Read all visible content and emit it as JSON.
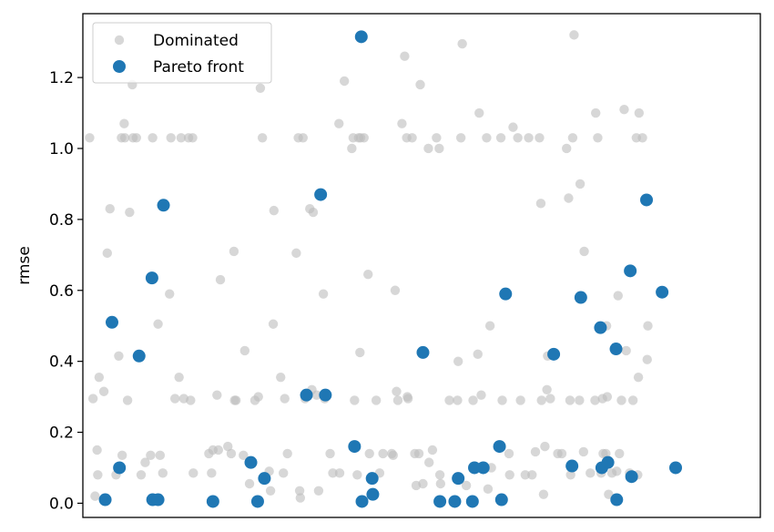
{
  "chart_data": {
    "type": "scatter",
    "title": "",
    "xlabel": "",
    "ylabel": "rmse",
    "x_ticks_visible": false,
    "xlim": [
      0,
      100
    ],
    "ylim": [
      -0.04,
      1.38
    ],
    "yticks": [
      0.0,
      0.2,
      0.4,
      0.6,
      0.8,
      1.0,
      1.2
    ],
    "ytick_labels": [
      "0.0",
      "0.2",
      "0.4",
      "0.6",
      "0.8",
      "1.0",
      "1.2"
    ],
    "grid": false,
    "legend": {
      "placement": "top-left",
      "entries": [
        "Dominated",
        "Pareto front"
      ]
    },
    "series": [
      {
        "name": "Dominated",
        "color": "#bdbdbd",
        "points": [
          [
            1.0,
            1.03
          ],
          [
            1.5,
            0.295
          ],
          [
            1.8,
            0.02
          ],
          [
            2.1,
            0.15
          ],
          [
            2.2,
            0.08
          ],
          [
            2.4,
            0.355
          ],
          [
            3.1,
            0.315
          ],
          [
            3.6,
            0.705
          ],
          [
            4.0,
            0.83
          ],
          [
            4.9,
            0.08
          ],
          [
            5.3,
            0.415
          ],
          [
            5.7,
            1.03
          ],
          [
            5.8,
            0.135
          ],
          [
            6.1,
            1.07
          ],
          [
            6.2,
            1.03
          ],
          [
            6.6,
            0.29
          ],
          [
            6.9,
            0.82
          ],
          [
            7.3,
            1.18
          ],
          [
            7.4,
            1.03
          ],
          [
            7.9,
            1.03
          ],
          [
            8.6,
            0.08
          ],
          [
            9.2,
            0.115
          ],
          [
            10.0,
            0.135
          ],
          [
            10.3,
            1.03
          ],
          [
            11.1,
            0.505
          ],
          [
            11.4,
            0.135
          ],
          [
            11.8,
            0.085
          ],
          [
            12.8,
            0.59
          ],
          [
            13.0,
            1.03
          ],
          [
            13.6,
            0.295
          ],
          [
            14.2,
            0.355
          ],
          [
            14.5,
            1.03
          ],
          [
            14.9,
            0.295
          ],
          [
            15.6,
            1.03
          ],
          [
            15.9,
            0.29
          ],
          [
            16.2,
            1.03
          ],
          [
            16.3,
            0.085
          ],
          [
            18.6,
            0.14
          ],
          [
            19.0,
            0.085
          ],
          [
            19.2,
            0.15
          ],
          [
            19.8,
            0.305
          ],
          [
            20.0,
            0.15
          ],
          [
            20.3,
            0.63
          ],
          [
            21.4,
            0.16
          ],
          [
            21.9,
            0.14
          ],
          [
            22.3,
            0.71
          ],
          [
            22.4,
            0.29
          ],
          [
            22.6,
            0.29
          ],
          [
            23.7,
            0.135
          ],
          [
            23.9,
            0.43
          ],
          [
            24.6,
            0.055
          ],
          [
            25.4,
            0.29
          ],
          [
            25.9,
            0.3
          ],
          [
            26.2,
            1.17
          ],
          [
            26.5,
            1.03
          ],
          [
            27.5,
            0.09
          ],
          [
            27.7,
            0.035
          ],
          [
            28.1,
            0.505
          ],
          [
            28.2,
            0.825
          ],
          [
            29.2,
            0.355
          ],
          [
            29.6,
            0.085
          ],
          [
            29.8,
            0.295
          ],
          [
            30.2,
            0.14
          ],
          [
            31.5,
            0.705
          ],
          [
            31.8,
            1.03
          ],
          [
            32.0,
            0.035
          ],
          [
            32.1,
            0.015
          ],
          [
            32.5,
            1.03
          ],
          [
            32.8,
            0.295
          ],
          [
            33.5,
            0.83
          ],
          [
            33.8,
            0.32
          ],
          [
            34.0,
            0.82
          ],
          [
            34.5,
            0.305
          ],
          [
            34.8,
            0.035
          ],
          [
            35.5,
            0.59
          ],
          [
            35.7,
            0.295
          ],
          [
            36.5,
            0.14
          ],
          [
            36.9,
            0.085
          ],
          [
            37.8,
            1.07
          ],
          [
            37.9,
            0.085
          ],
          [
            38.6,
            1.19
          ],
          [
            39.7,
            1.0
          ],
          [
            39.9,
            1.03
          ],
          [
            40.1,
            0.29
          ],
          [
            40.5,
            0.08
          ],
          [
            40.7,
            1.03
          ],
          [
            40.9,
            0.425
          ],
          [
            41.0,
            1.03
          ],
          [
            41.5,
            1.03
          ],
          [
            42.1,
            0.645
          ],
          [
            42.3,
            0.14
          ],
          [
            43.3,
            0.29
          ],
          [
            43.8,
            0.085
          ],
          [
            44.3,
            0.14
          ],
          [
            45.6,
            0.14
          ],
          [
            45.8,
            0.135
          ],
          [
            46.1,
            0.6
          ],
          [
            46.3,
            0.315
          ],
          [
            46.5,
            0.29
          ],
          [
            47.1,
            1.07
          ],
          [
            47.5,
            1.26
          ],
          [
            47.8,
            1.03
          ],
          [
            47.9,
            0.3
          ],
          [
            48.0,
            0.295
          ],
          [
            48.6,
            1.03
          ],
          [
            49.0,
            0.14
          ],
          [
            49.2,
            0.05
          ],
          [
            49.6,
            0.14
          ],
          [
            49.8,
            1.18
          ],
          [
            50.2,
            0.055
          ],
          [
            51.0,
            1.0
          ],
          [
            51.1,
            0.115
          ],
          [
            51.6,
            0.15
          ],
          [
            52.2,
            1.03
          ],
          [
            52.6,
            1.0
          ],
          [
            52.7,
            0.08
          ],
          [
            52.8,
            0.055
          ],
          [
            54.1,
            0.29
          ],
          [
            55.3,
            0.29
          ],
          [
            55.4,
            0.4
          ],
          [
            55.8,
            1.03
          ],
          [
            56.0,
            1.295
          ],
          [
            56.6,
            0.05
          ],
          [
            57.6,
            0.29
          ],
          [
            58.3,
            0.42
          ],
          [
            58.5,
            1.1
          ],
          [
            58.8,
            0.305
          ],
          [
            59.6,
            1.03
          ],
          [
            59.8,
            0.04
          ],
          [
            60.1,
            0.5
          ],
          [
            60.3,
            0.1
          ],
          [
            61.7,
            1.03
          ],
          [
            61.9,
            0.29
          ],
          [
            62.9,
            0.14
          ],
          [
            63.0,
            0.08
          ],
          [
            63.5,
            1.06
          ],
          [
            64.2,
            1.03
          ],
          [
            64.6,
            0.29
          ],
          [
            65.3,
            0.08
          ],
          [
            65.8,
            1.03
          ],
          [
            66.3,
            0.08
          ],
          [
            66.8,
            0.145
          ],
          [
            67.4,
            1.03
          ],
          [
            67.6,
            0.845
          ],
          [
            67.7,
            0.29
          ],
          [
            68.0,
            0.025
          ],
          [
            68.2,
            0.16
          ],
          [
            68.5,
            0.32
          ],
          [
            68.6,
            0.415
          ],
          [
            69.0,
            0.295
          ],
          [
            70.1,
            0.14
          ],
          [
            70.7,
            0.14
          ],
          [
            71.4,
            1.0
          ],
          [
            71.7,
            0.86
          ],
          [
            71.9,
            0.29
          ],
          [
            72.0,
            0.08
          ],
          [
            72.3,
            1.03
          ],
          [
            72.5,
            1.32
          ],
          [
            73.3,
            0.29
          ],
          [
            73.4,
            0.9
          ],
          [
            73.9,
            0.145
          ],
          [
            74.0,
            0.71
          ],
          [
            74.9,
            0.085
          ],
          [
            75.6,
            0.29
          ],
          [
            75.7,
            1.1
          ],
          [
            76.0,
            1.03
          ],
          [
            76.5,
            0.085
          ],
          [
            76.7,
            0.295
          ],
          [
            76.8,
            0.14
          ],
          [
            77.2,
            0.14
          ],
          [
            77.3,
            0.5
          ],
          [
            77.4,
            0.3
          ],
          [
            77.6,
            0.025
          ],
          [
            78.1,
            0.085
          ],
          [
            78.8,
            0.09
          ],
          [
            79.0,
            0.585
          ],
          [
            79.2,
            0.14
          ],
          [
            79.5,
            0.29
          ],
          [
            79.9,
            1.11
          ],
          [
            80.2,
            0.43
          ],
          [
            80.7,
            0.085
          ],
          [
            81.2,
            0.29
          ],
          [
            81.7,
            1.03
          ],
          [
            81.9,
            0.08
          ],
          [
            82.0,
            0.355
          ],
          [
            82.1,
            1.1
          ],
          [
            82.6,
            1.03
          ],
          [
            83.3,
            0.405
          ],
          [
            83.4,
            0.5
          ]
        ]
      },
      {
        "name": "Pareto front",
        "color": "#1f77b4",
        "points": [
          [
            3.3,
            0.01
          ],
          [
            4.3,
            0.51
          ],
          [
            5.4,
            0.1
          ],
          [
            8.3,
            0.415
          ],
          [
            10.2,
            0.635
          ],
          [
            10.3,
            0.01
          ],
          [
            11.1,
            0.01
          ],
          [
            11.9,
            0.84
          ],
          [
            19.2,
            0.005
          ],
          [
            24.8,
            0.115
          ],
          [
            25.8,
            0.005
          ],
          [
            26.8,
            0.07
          ],
          [
            33.0,
            0.305
          ],
          [
            35.1,
            0.87
          ],
          [
            35.8,
            0.305
          ],
          [
            40.1,
            0.16
          ],
          [
            41.1,
            1.315
          ],
          [
            41.2,
            0.005
          ],
          [
            42.7,
            0.07
          ],
          [
            42.8,
            0.025
          ],
          [
            50.2,
            0.425
          ],
          [
            52.7,
            0.005
          ],
          [
            54.9,
            0.005
          ],
          [
            55.4,
            0.07
          ],
          [
            57.5,
            0.005
          ],
          [
            57.8,
            0.1
          ],
          [
            59.1,
            0.1
          ],
          [
            61.5,
            0.16
          ],
          [
            61.8,
            0.01
          ],
          [
            62.4,
            0.59
          ],
          [
            69.5,
            0.42
          ],
          [
            72.2,
            0.105
          ],
          [
            73.5,
            0.58
          ],
          [
            76.4,
            0.495
          ],
          [
            76.6,
            0.1
          ],
          [
            77.5,
            0.115
          ],
          [
            78.7,
            0.435
          ],
          [
            78.8,
            0.01
          ],
          [
            80.8,
            0.655
          ],
          [
            81.0,
            0.075
          ],
          [
            83.2,
            0.855
          ],
          [
            85.5,
            0.595
          ],
          [
            87.5,
            0.1
          ]
        ]
      }
    ]
  }
}
